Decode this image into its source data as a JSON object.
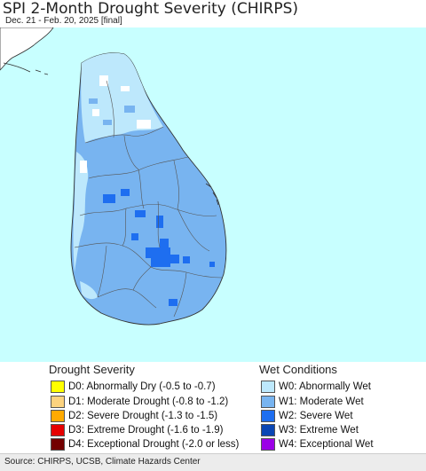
{
  "header": {
    "title": "SPI 2-Month Drought Severity (CHIRPS)",
    "subtitle": "Dec. 21 - Feb. 20, 2025 [final]"
  },
  "legend": {
    "drought": {
      "heading": "Drought Severity",
      "items": [
        {
          "label": "D0: Abnormally Dry (-0.5 to -0.7)",
          "color": "#ffff00"
        },
        {
          "label": "D1: Moderate Drought (-0.8 to -1.2)",
          "color": "#fcd37f"
        },
        {
          "label": "D2: Severe Drought (-1.3 to -1.5)",
          "color": "#ffaa00"
        },
        {
          "label": "D3: Extreme Drought (-1.6 to -1.9)",
          "color": "#e60000"
        },
        {
          "label": "D4: Exceptional Drought (-2.0 or less)",
          "color": "#730000"
        }
      ]
    },
    "wet": {
      "heading": "Wet Conditions",
      "items": [
        {
          "label": "W0: Abnormally Wet",
          "color": "#bde8fc"
        },
        {
          "label": "W1: Moderate Wet",
          "color": "#78b4f0"
        },
        {
          "label": "W2: Severe Wet",
          "color": "#1e6ef0"
        },
        {
          "label": "W3: Extreme Wet",
          "color": "#0a46b4"
        },
        {
          "label": "W4: Exceptional Wet",
          "color": "#9b00e6"
        }
      ]
    }
  },
  "map": {
    "sea_color": "#c8ffff",
    "land_outside_color": "#ffffff",
    "region": "Sri Lanka"
  },
  "footer": {
    "source": "Source: CHIRPS, UCSB, Climate Hazards Center"
  }
}
